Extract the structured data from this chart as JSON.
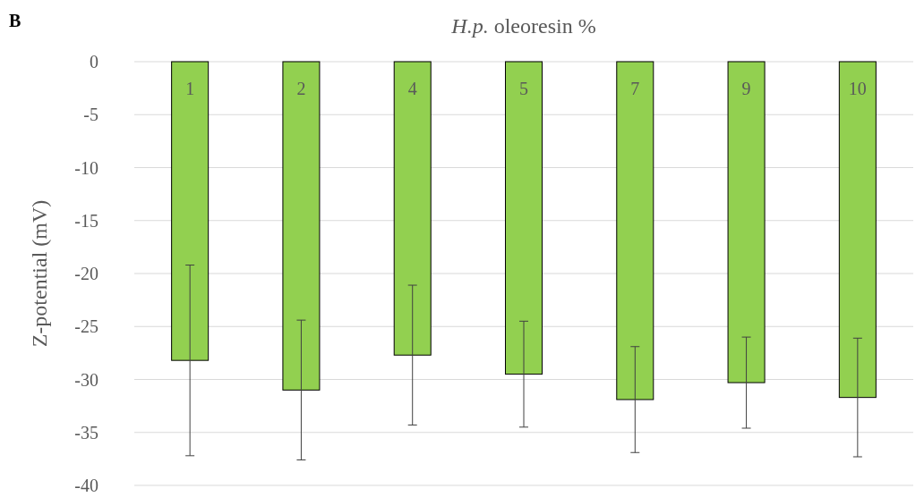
{
  "chart_data": {
    "type": "bar",
    "title": "H.p. oleoresin %",
    "ylabel": "Z-potential (mV)",
    "annotations": [
      "B"
    ],
    "categories": [
      "1",
      "2",
      "4",
      "5",
      "7",
      "9",
      "10"
    ],
    "values": [
      -28.2,
      -31.0,
      -27.7,
      -29.5,
      -31.9,
      -30.3,
      -31.7
    ],
    "errors": [
      9.0,
      6.6,
      6.6,
      5.0,
      5.0,
      4.3,
      5.6
    ],
    "color": "#92d050",
    "ylim": [
      -40,
      0
    ],
    "yticks": [
      0,
      -5,
      -10,
      -15,
      -20,
      -25,
      -30,
      -35,
      -40
    ],
    "grid": "y"
  }
}
